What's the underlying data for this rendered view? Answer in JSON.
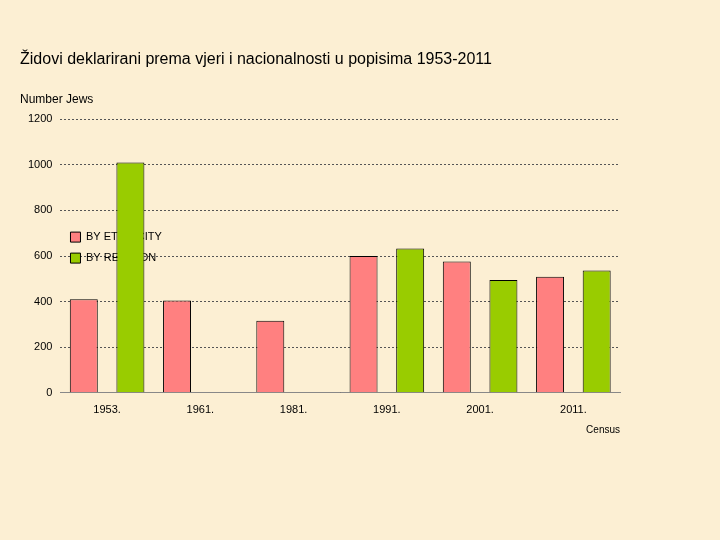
{
  "chart_data": {
    "type": "bar",
    "title": "Židovi deklarirani prema vjeri i nacionalnosti u popisima 1953-2011",
    "y_label": "Number Jews",
    "x_label": "Census",
    "categories": [
      "1953.",
      "1961.",
      "1981.",
      "1991.",
      "2001.",
      "2011."
    ],
    "series": [
      {
        "name": "BY ETHNICITY",
        "color": "#ff8080",
        "values": [
          410,
          405,
          316,
          600,
          576,
          509
        ]
      },
      {
        "name": "BY RELIGION",
        "color": "#99cc00",
        "values": [
          1010,
          null,
          null,
          633,
          495,
          536
        ]
      }
    ],
    "ylim": [
      0,
      1200
    ],
    "yticks": [
      0,
      200,
      400,
      600,
      800,
      1000,
      1200
    ],
    "grid": true,
    "legend": "upper right"
  }
}
